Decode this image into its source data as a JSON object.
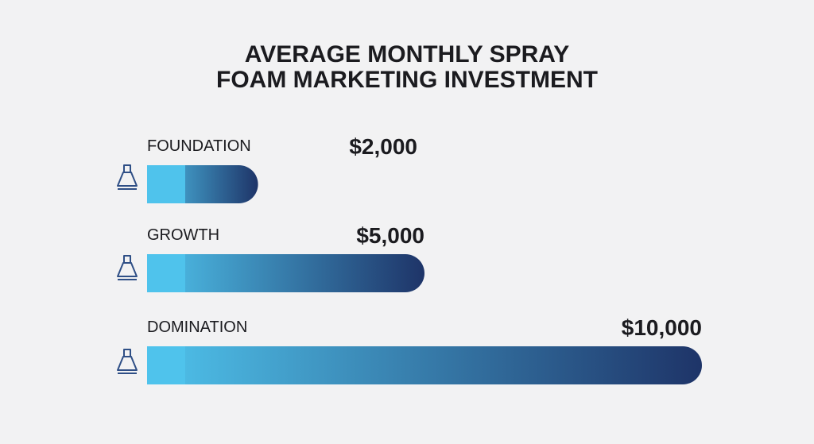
{
  "chart_data": {
    "type": "bar",
    "orientation": "horizontal",
    "title": "AVERAGE MONTHLY SPRAY FOAM MARKETING INVESTMENT",
    "categories": [
      "FOUNDATION",
      "GROWTH",
      "DOMINATION"
    ],
    "values": [
      2000,
      5000,
      10000
    ],
    "value_labels": [
      "$2,000",
      "$5,000",
      "$10,000"
    ],
    "gradient": [
      "#4fc3ec",
      "#1e3468"
    ]
  }
}
